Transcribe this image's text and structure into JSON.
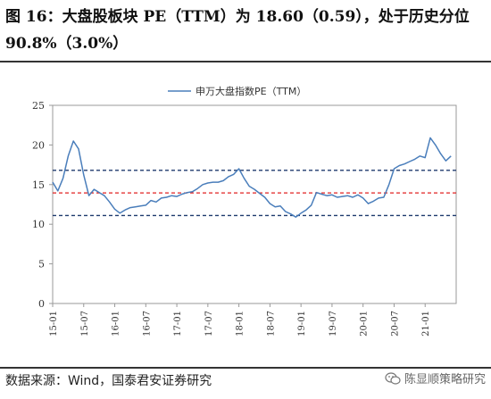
{
  "title": "图 16：大盘股板块 PE（TTM）为 18.60（0.59），处于历史分位 90.8%（3.0%）",
  "source": "数据来源：Wind，国泰君安证券研究",
  "watermark": "陈显顺策略研究",
  "chart_data": {
    "type": "line",
    "series": [
      {
        "name": "申万大盘指数PE（TTM）",
        "color": "#4a7ebb",
        "x": [
          "2015-01",
          "2015-02",
          "2015-03",
          "2015-04",
          "2015-05",
          "2015-06",
          "2015-07",
          "2015-08",
          "2015-09",
          "2015-10",
          "2015-11",
          "2015-12",
          "2016-01",
          "2016-02",
          "2016-03",
          "2016-04",
          "2016-05",
          "2016-06",
          "2016-07",
          "2016-08",
          "2016-09",
          "2016-10",
          "2016-11",
          "2016-12",
          "2017-01",
          "2017-02",
          "2017-03",
          "2017-04",
          "2017-05",
          "2017-06",
          "2017-07",
          "2017-08",
          "2017-09",
          "2017-10",
          "2017-11",
          "2017-12",
          "2018-01",
          "2018-02",
          "2018-03",
          "2018-04",
          "2018-05",
          "2018-06",
          "2018-07",
          "2018-08",
          "2018-09",
          "2018-10",
          "2018-11",
          "2018-12",
          "2019-01",
          "2019-02",
          "2019-03",
          "2019-04",
          "2019-05",
          "2019-06",
          "2019-07",
          "2019-08",
          "2019-09",
          "2019-10",
          "2019-11",
          "2019-12",
          "2020-01",
          "2020-02",
          "2020-03",
          "2020-04",
          "2020-05",
          "2020-06",
          "2020-07",
          "2020-08",
          "2020-09",
          "2020-10",
          "2020-11",
          "2020-12",
          "2021-01",
          "2021-02",
          "2021-03",
          "2021-04",
          "2021-05",
          "2021-06"
        ],
        "values": [
          15.3,
          14.2,
          15.8,
          18.6,
          20.5,
          19.5,
          16.2,
          13.6,
          14.4,
          14.0,
          13.6,
          12.8,
          11.9,
          11.4,
          11.8,
          12.1,
          12.2,
          12.3,
          12.4,
          13.0,
          12.8,
          13.3,
          13.4,
          13.6,
          13.5,
          13.8,
          14.0,
          14.1,
          14.5,
          15.0,
          15.2,
          15.3,
          15.3,
          15.5,
          16.0,
          16.3,
          17.0,
          15.8,
          14.8,
          14.4,
          13.9,
          13.4,
          12.6,
          12.2,
          12.3,
          11.6,
          11.3,
          10.9,
          11.4,
          11.8,
          12.4,
          14.0,
          13.8,
          13.6,
          13.7,
          13.4,
          13.5,
          13.6,
          13.4,
          13.7,
          13.3,
          12.6,
          12.9,
          13.3,
          13.4,
          15.0,
          17.0,
          17.4,
          17.6,
          17.9,
          18.2,
          18.6,
          18.4,
          20.9,
          20.0,
          18.9,
          18.0,
          18.6
        ]
      }
    ],
    "x_ticks": [
      "15-01",
      "15-07",
      "16-01",
      "16-07",
      "17-01",
      "17-07",
      "18-01",
      "18-07",
      "19-01",
      "19-07",
      "20-01",
      "20-07",
      "21-01"
    ],
    "ylim": [
      0,
      25
    ],
    "y_ticks": [
      0,
      5,
      10,
      15,
      20,
      25
    ],
    "ref_lines": [
      {
        "value": 16.8,
        "color": "#1f3a6e"
      },
      {
        "value": 13.95,
        "color": "#e02020"
      },
      {
        "value": 11.1,
        "color": "#1f3a6e"
      }
    ],
    "legend_position": "top-center",
    "grid": false
  }
}
